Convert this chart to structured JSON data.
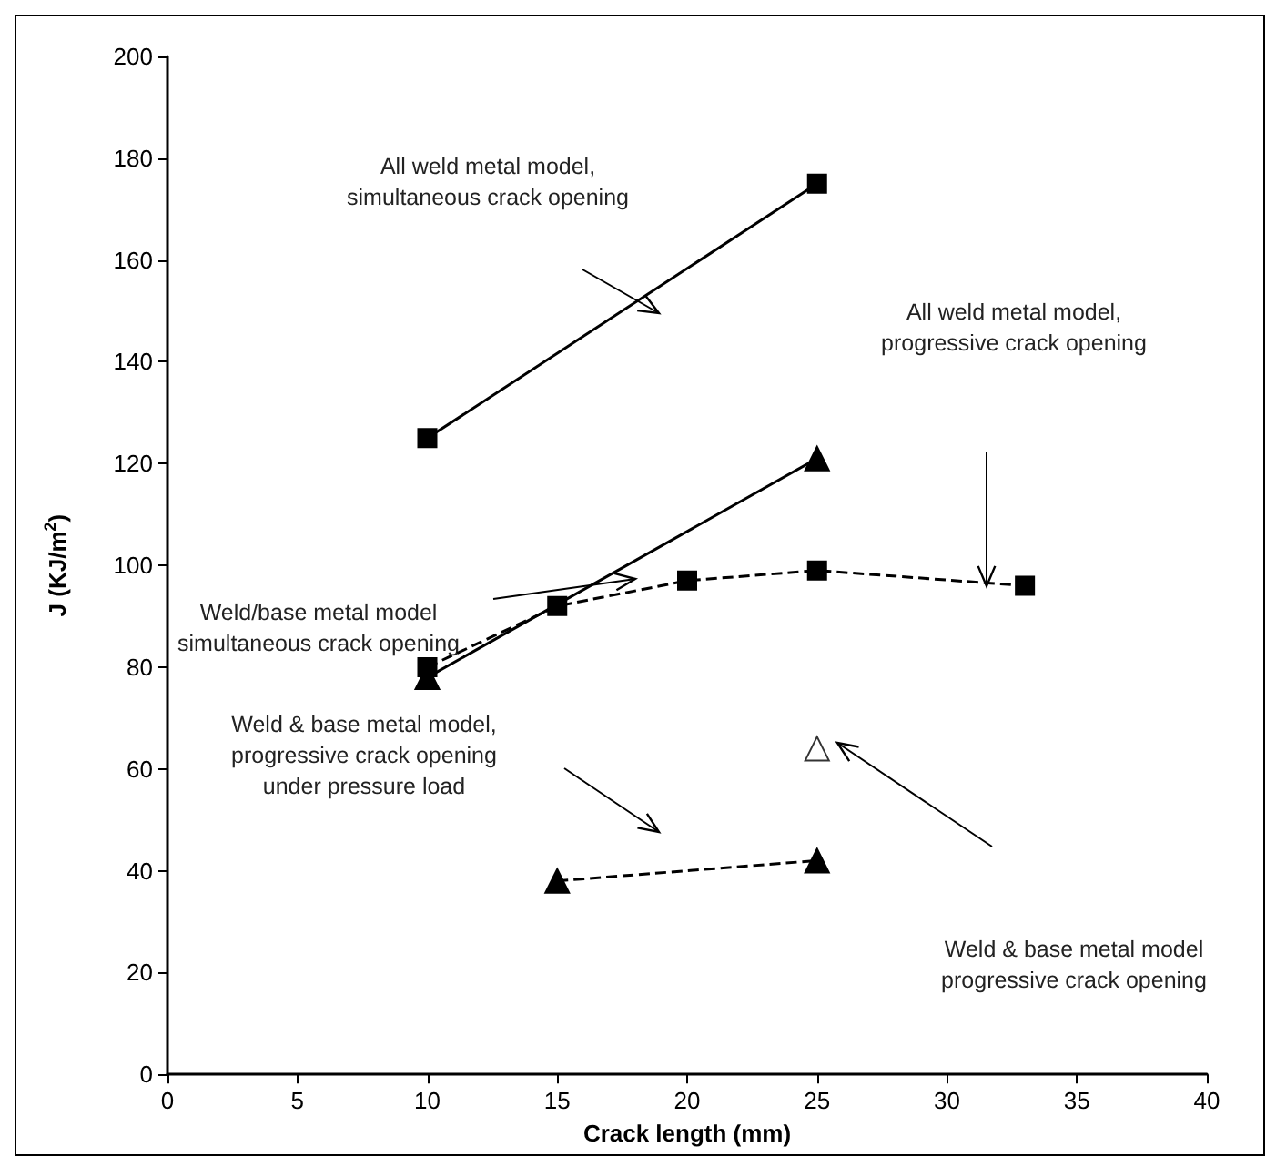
{
  "chart_data": {
    "type": "line",
    "xlabel": "Crack length (mm)",
    "ylabel": "J (KJ/m$^{2}$)",
    "xlim": [
      0,
      40
    ],
    "xticks": [
      0,
      5,
      10,
      15,
      20,
      25,
      30,
      35,
      40
    ],
    "ylim": [
      0,
      200
    ],
    "yticks": [
      0,
      20,
      40,
      60,
      80,
      100,
      120,
      140,
      160,
      180,
      200
    ],
    "grid": false,
    "series": [
      {
        "x": [
          10,
          25
        ],
        "values": [
          125,
          175
        ],
        "color": "#000000",
        "marker": "square",
        "line_style": "solid"
      },
      {
        "x": [
          10,
          25
        ],
        "values": [
          78,
          121
        ],
        "color": "#000000",
        "marker": "triangle",
        "line_style": "solid"
      },
      {
        "x": [
          10,
          15,
          20,
          25,
          33
        ],
        "values": [
          80,
          92,
          97,
          99,
          96
        ],
        "color": "#000000",
        "marker": "square",
        "line_style": "dashed"
      },
      {
        "x": [
          15,
          25
        ],
        "values": [
          38,
          42
        ],
        "color": "#000000",
        "marker": "triangle",
        "line_style": "dashed"
      },
      {
        "type": "scatter",
        "x": [
          25
        ],
        "values": [
          64
        ],
        "color": "#ffffff",
        "marker": "triangle"
      }
    ],
    "annotations": [
      "All weld metal model,\nsimultaneous crack opening",
      "All weld metal model,\nprogressive crack opening",
      "Weld/base metal model\nsimultaneous crack opening",
      "Weld & base metal model,\nprogressive crack opening\nunder pressure load",
      "Weld & base metal model\nprogressive crack opening"
    ]
  }
}
